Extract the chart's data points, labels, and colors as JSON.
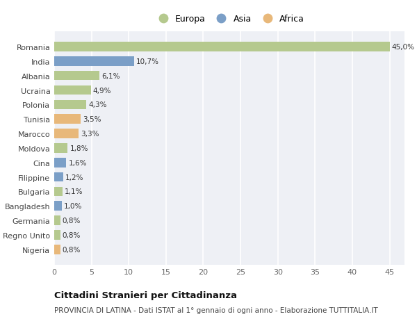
{
  "countries": [
    "Romania",
    "India",
    "Albania",
    "Ucraina",
    "Polonia",
    "Tunisia",
    "Marocco",
    "Moldova",
    "Cina",
    "Filippine",
    "Bulgaria",
    "Bangladesh",
    "Germania",
    "Regno Unito",
    "Nigeria"
  ],
  "values": [
    45.0,
    10.7,
    6.1,
    4.9,
    4.3,
    3.5,
    3.3,
    1.8,
    1.6,
    1.2,
    1.1,
    1.0,
    0.8,
    0.8,
    0.8
  ],
  "labels": [
    "45,0%",
    "10,7%",
    "6,1%",
    "4,9%",
    "4,3%",
    "3,5%",
    "3,3%",
    "1,8%",
    "1,6%",
    "1,2%",
    "1,1%",
    "1,0%",
    "0,8%",
    "0,8%",
    "0,8%"
  ],
  "continents": [
    "Europa",
    "Asia",
    "Europa",
    "Europa",
    "Europa",
    "Africa",
    "Africa",
    "Europa",
    "Asia",
    "Asia",
    "Europa",
    "Asia",
    "Europa",
    "Europa",
    "Africa"
  ],
  "colors": {
    "Europa": "#b5c98e",
    "Asia": "#7b9fc7",
    "Africa": "#e8b87a"
  },
  "legend_order": [
    "Europa",
    "Asia",
    "Africa"
  ],
  "title1": "Cittadini Stranieri per Cittadinanza",
  "title2": "PROVINCIA DI LATINA - Dati ISTAT al 1° gennaio di ogni anno - Elaborazione TUTTITALIA.IT",
  "xlim": [
    0,
    47
  ],
  "xticks": [
    0,
    5,
    10,
    15,
    20,
    25,
    30,
    35,
    40,
    45
  ],
  "plot_bg_color": "#eef0f5",
  "fig_bg_color": "#ffffff",
  "grid_color": "#ffffff",
  "bar_height": 0.65,
  "label_fontsize": 7.5,
  "ytick_fontsize": 8.0,
  "xtick_fontsize": 8.0,
  "legend_fontsize": 9.0,
  "title1_fontsize": 9.5,
  "title2_fontsize": 7.5
}
